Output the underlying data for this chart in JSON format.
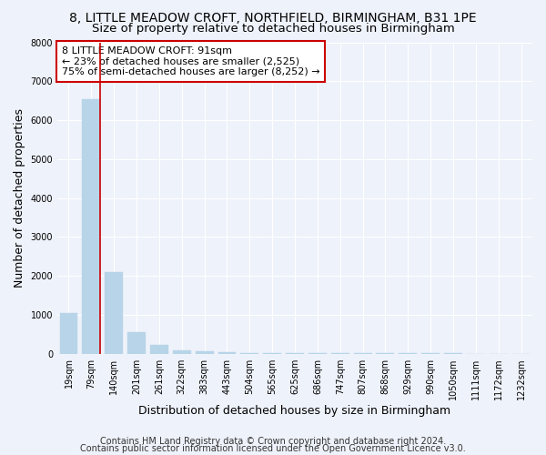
{
  "title_line1": "8, LITTLE MEADOW CROFT, NORTHFIELD, BIRMINGHAM, B31 1PE",
  "title_line2": "Size of property relative to detached houses in Birmingham",
  "xlabel": "Distribution of detached houses by size in Birmingham",
  "ylabel": "Number of detached properties",
  "footnote1": "Contains HM Land Registry data © Crown copyright and database right 2024.",
  "footnote2": "Contains public sector information licensed under the Open Government Licence v3.0.",
  "categories": [
    "19sqm",
    "79sqm",
    "140sqm",
    "201sqm",
    "261sqm",
    "322sqm",
    "383sqm",
    "443sqm",
    "504sqm",
    "565sqm",
    "625sqm",
    "686sqm",
    "747sqm",
    "807sqm",
    "868sqm",
    "929sqm",
    "990sqm",
    "1050sqm",
    "1111sqm",
    "1172sqm",
    "1232sqm"
  ],
  "values": [
    1050,
    6550,
    2100,
    560,
    230,
    95,
    55,
    35,
    22,
    14,
    10,
    7,
    5,
    4,
    3,
    3,
    2,
    2,
    1,
    1,
    1
  ],
  "bar_color": "#b8d4e8",
  "bar_edge_color": "#b8d4e8",
  "property_bar_index": 1,
  "annotation_text": "8 LITTLE MEADOW CROFT: 91sqm\n← 23% of detached houses are smaller (2,525)\n75% of semi-detached houses are larger (8,252) →",
  "annotation_box_color": "#ffffff",
  "annotation_box_edge_color": "#cc0000",
  "property_line_color": "#cc0000",
  "ylim": [
    0,
    8000
  ],
  "yticks": [
    0,
    1000,
    2000,
    3000,
    4000,
    5000,
    6000,
    7000,
    8000
  ],
  "background_color": "#eef2fa",
  "plot_bg_color": "#eef2fa",
  "grid_color": "#ffffff",
  "title_fontsize": 10,
  "subtitle_fontsize": 9.5,
  "axis_label_fontsize": 9,
  "tick_fontsize": 7,
  "annotation_fontsize": 8,
  "footnote_fontsize": 7
}
